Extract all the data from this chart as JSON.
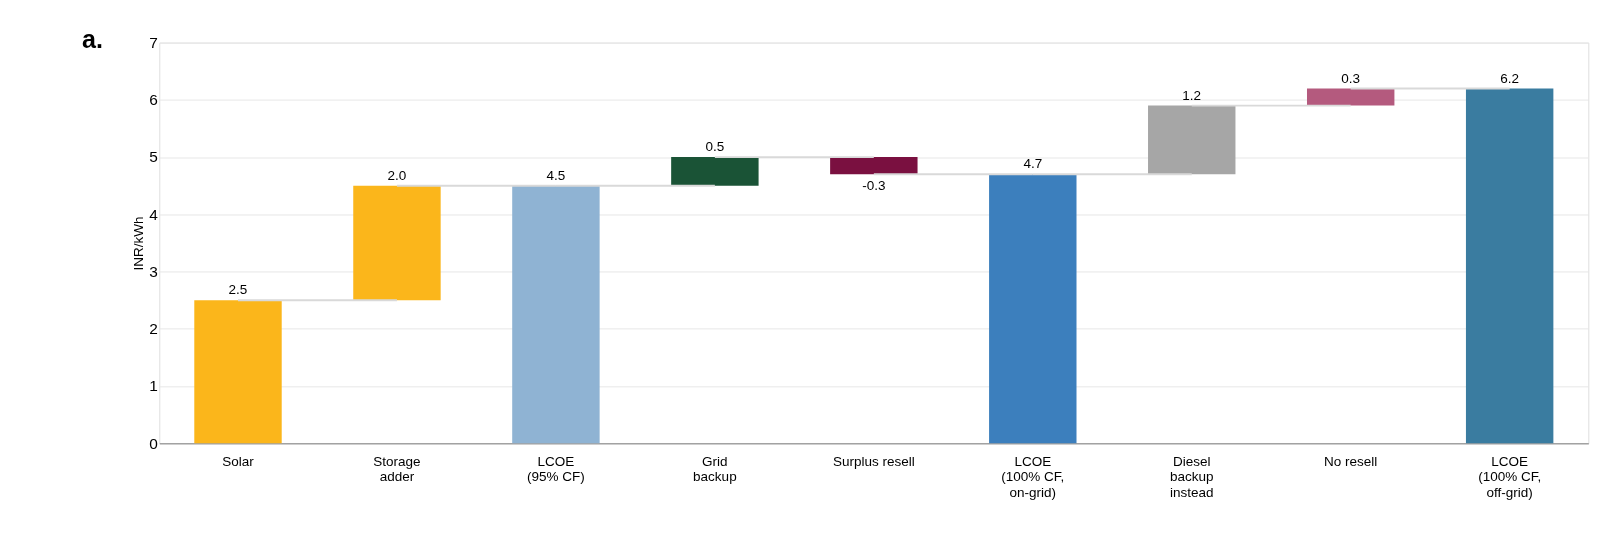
{
  "chart_data": {
    "type": "bar",
    "ylabel": "INR/kWh",
    "categories": [
      "Solar",
      "Storage\nadder",
      "LCOE\n(95% CF)",
      "Grid\nbackup",
      "Surplus resell",
      "LCOE\n(100% CF,\non-grid)",
      "Diesel\nbackup\ninstead",
      "No resell",
      "LCOE\n(100% CF,\noff-grid)"
    ],
    "values": [
      2.5,
      2.0,
      4.5,
      0.5,
      -0.3,
      4.7,
      1.2,
      0.3,
      6.2
    ],
    "base": [
      0,
      2.5,
      0,
      4.5,
      5.0,
      0,
      4.7,
      5.9,
      0
    ],
    "value_labels": [
      "2.5",
      "2.0",
      "4.5",
      "0.5",
      "-0.3",
      "4.7",
      "1.2",
      "0.3",
      "6.2"
    ],
    "colors": [
      "#fbb61b",
      "#fbb61b",
      "#8fb3d3",
      "#1a5336",
      "#7a1040",
      "#3c7fbd",
      "#a6a6a6",
      "#b45a7e",
      "#3a7ca0"
    ],
    "ylim": [
      0,
      7
    ],
    "yticks": [
      0,
      1,
      2,
      3,
      4,
      5,
      6,
      7
    ],
    "grid": "y",
    "annotations": [
      {
        "text": "a."
      }
    ]
  }
}
